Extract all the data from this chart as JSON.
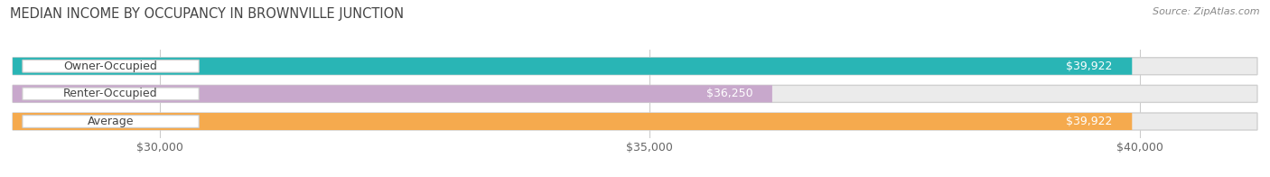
{
  "title": "MEDIAN INCOME BY OCCUPANCY IN BROWNVILLE JUNCTION",
  "source": "Source: ZipAtlas.com",
  "categories": [
    "Owner-Occupied",
    "Renter-Occupied",
    "Average"
  ],
  "values": [
    39922,
    36250,
    39922
  ],
  "bar_colors": [
    "#29b5b5",
    "#c8a8cc",
    "#f5aa4e"
  ],
  "label_values": [
    "$39,922",
    "$36,250",
    "$39,922"
  ],
  "x_min": 28500,
  "x_max": 41200,
  "x_ticks": [
    30000,
    35000,
    40000
  ],
  "x_tick_labels": [
    "$30,000",
    "$35,000",
    "$40,000"
  ],
  "background_color": "#ffffff",
  "bar_bg_color": "#ebebeb",
  "title_fontsize": 10.5,
  "source_fontsize": 8,
  "tick_fontsize": 9,
  "label_fontsize": 9,
  "cat_fontsize": 9
}
